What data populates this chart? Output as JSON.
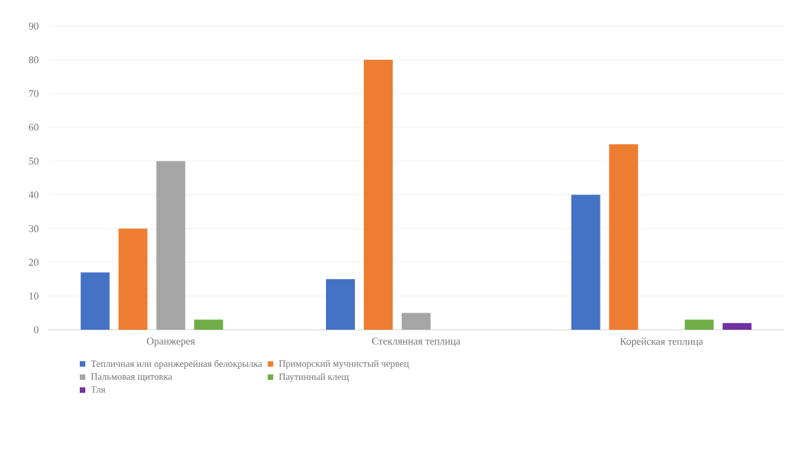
{
  "chart_data": {
    "type": "bar",
    "categories": [
      "Оранжерея",
      "Стеклянная теплица",
      "Корейская теплица"
    ],
    "series": [
      {
        "name": "Тепличная или оранжерейная белокрылка",
        "color": "#4472c4",
        "values": [
          17,
          15,
          40
        ]
      },
      {
        "name": "Приморский мучнистый червец",
        "color": "#ed7d31",
        "values": [
          30,
          80,
          55
        ]
      },
      {
        "name": "Пальмовая щитовка",
        "color": "#a5a5a5",
        "values": [
          50,
          5,
          null
        ]
      },
      {
        "name": "Паутинный клещ",
        "color": "#70ad47",
        "values": [
          3,
          null,
          3
        ]
      },
      {
        "name": "Тля",
        "color": "#7030a0",
        "values": [
          null,
          null,
          2
        ]
      }
    ],
    "ylim": [
      0,
      90
    ],
    "yticks": [
      0,
      10,
      20,
      30,
      40,
      50,
      60,
      70,
      80,
      90
    ],
    "grid": "y",
    "legend": "bottom"
  }
}
